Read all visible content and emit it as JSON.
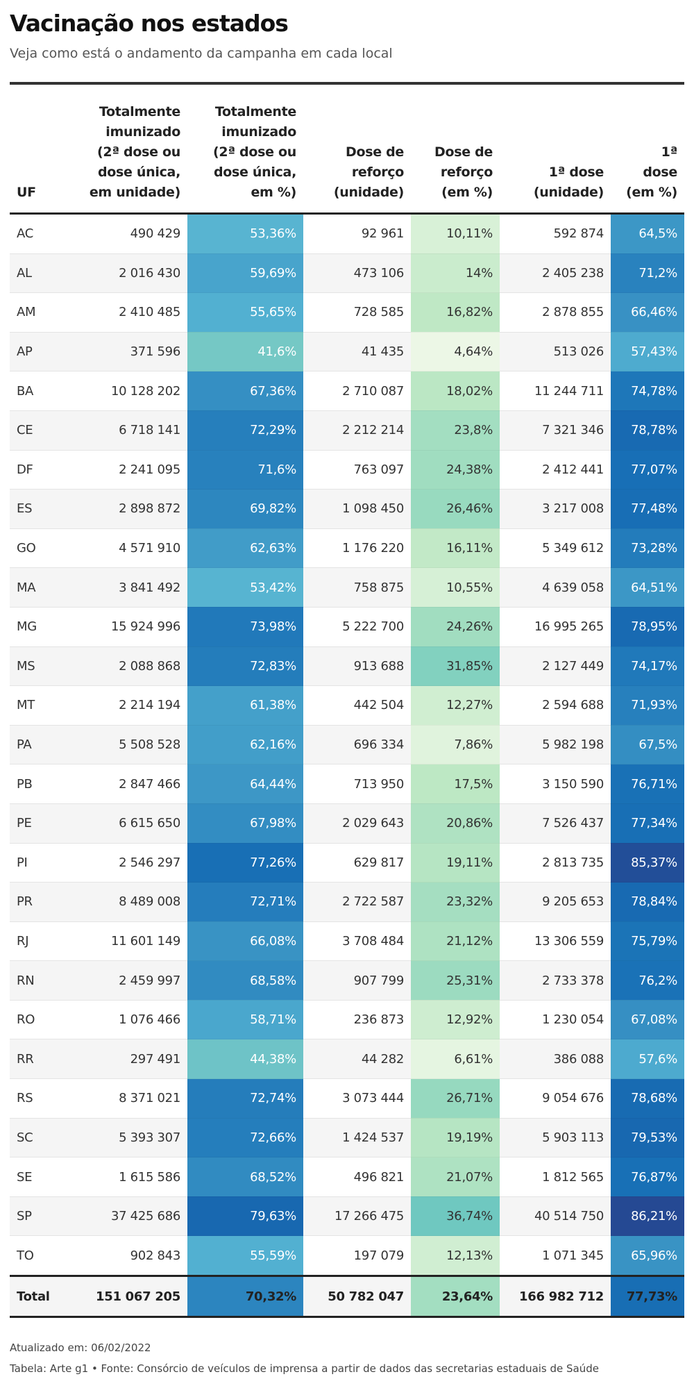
{
  "header": {
    "title": "Vacinação nos estados",
    "subtitle": "Veja como está o andamento da campanha em cada local"
  },
  "table": {
    "columns": [
      "UF",
      "Totalmente\nimunizado\n(2ª dose ou\ndose única,\nem unidade)",
      "Totalmente\nimunizado\n(2ª dose ou\ndose única,\nem %)",
      "Dose de\nreforço\n(unidade)",
      "Dose de\nreforço\n(em %)",
      "1ª dose\n(unidade)",
      "1ª\ndose\n(em %)"
    ],
    "rows": [
      [
        "AC",
        "490 429",
        "53,36%",
        "92 961",
        "10,11%",
        "592 874",
        "64,5%"
      ],
      [
        "AL",
        "2 016 430",
        "59,69%",
        "473 106",
        "14%",
        "2 405 238",
        "71,2%"
      ],
      [
        "AM",
        "2 410 485",
        "55,65%",
        "728 585",
        "16,82%",
        "2 878 855",
        "66,46%"
      ],
      [
        "AP",
        "371 596",
        "41,6%",
        "41 435",
        "4,64%",
        "513 026",
        "57,43%"
      ],
      [
        "BA",
        "10 128 202",
        "67,36%",
        "2 710 087",
        "18,02%",
        "11 244 711",
        "74,78%"
      ],
      [
        "CE",
        "6 718 141",
        "72,29%",
        "2 212 214",
        "23,8%",
        "7 321 346",
        "78,78%"
      ],
      [
        "DF",
        "2 241 095",
        "71,6%",
        "763 097",
        "24,38%",
        "2 412 441",
        "77,07%"
      ],
      [
        "ES",
        "2 898 872",
        "69,82%",
        "1 098 450",
        "26,46%",
        "3 217 008",
        "77,48%"
      ],
      [
        "GO",
        "4 571 910",
        "62,63%",
        "1 176 220",
        "16,11%",
        "5 349 612",
        "73,28%"
      ],
      [
        "MA",
        "3 841 492",
        "53,42%",
        "758 875",
        "10,55%",
        "4 639 058",
        "64,51%"
      ],
      [
        "MG",
        "15 924 996",
        "73,98%",
        "5 222 700",
        "24,26%",
        "16 995 265",
        "78,95%"
      ],
      [
        "MS",
        "2 088 868",
        "72,83%",
        "913 688",
        "31,85%",
        "2 127 449",
        "74,17%"
      ],
      [
        "MT",
        "2 214 194",
        "61,38%",
        "442 504",
        "12,27%",
        "2 594 688",
        "71,93%"
      ],
      [
        "PA",
        "5 508 528",
        "62,16%",
        "696 334",
        "7,86%",
        "5 982 198",
        "67,5%"
      ],
      [
        "PB",
        "2 847 466",
        "64,44%",
        "713 950",
        "17,5%",
        "3 150 590",
        "76,71%"
      ],
      [
        "PE",
        "6 615 650",
        "67,98%",
        "2 029 643",
        "20,86%",
        "7 526 437",
        "77,34%"
      ],
      [
        "PI",
        "2 546 297",
        "77,26%",
        "629 817",
        "19,11%",
        "2 813 735",
        "85,37%"
      ],
      [
        "PR",
        "8 489 008",
        "72,71%",
        "2 722 587",
        "23,32%",
        "9 205 653",
        "78,84%"
      ],
      [
        "RJ",
        "11 601 149",
        "66,08%",
        "3 708 484",
        "21,12%",
        "13 306 559",
        "75,79%"
      ],
      [
        "RN",
        "2 459 997",
        "68,58%",
        "907 799",
        "25,31%",
        "2 733 378",
        "76,2%"
      ],
      [
        "RO",
        "1 076 466",
        "58,71%",
        "236 873",
        "12,92%",
        "1 230 054",
        "67,08%"
      ],
      [
        "RR",
        "297 491",
        "44,38%",
        "44 282",
        "6,61%",
        "386 088",
        "57,6%"
      ],
      [
        "RS",
        "8 371 021",
        "72,74%",
        "3 073 444",
        "26,71%",
        "9 054 676",
        "78,68%"
      ],
      [
        "SC",
        "5 393 307",
        "72,66%",
        "1 424 537",
        "19,19%",
        "5 903 113",
        "79,53%"
      ],
      [
        "SE",
        "1 615 586",
        "68,52%",
        "496 821",
        "21,07%",
        "1 812 565",
        "76,87%"
      ],
      [
        "SP",
        "37 425 686",
        "79,63%",
        "17 266 475",
        "36,74%",
        "40 514 750",
        "86,21%"
      ],
      [
        "TO",
        "902 843",
        "55,59%",
        "197 079",
        "12,13%",
        "1 071 345",
        "65,96%"
      ]
    ],
    "total": [
      "Total",
      "151 067 205",
      "70,32%",
      "50 782 047",
      "23,64%",
      "166 982 712",
      "77,73%"
    ]
  },
  "footer": {
    "updated": "Atualizado em: 06/02/2022",
    "source": "Tabela: Arte g1 • Fonte: Consórcio de veículos de imprensa a partir de dados das secretarias estaduais de Saúde"
  }
}
